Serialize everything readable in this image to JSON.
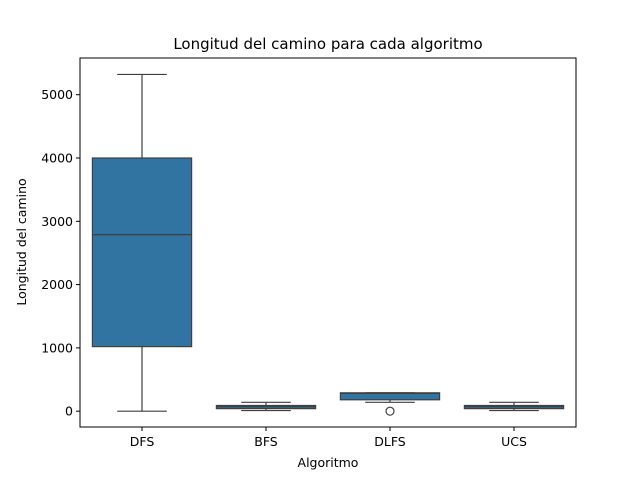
{
  "chart_data": {
    "type": "box",
    "title": "Longitud del camino para cada algoritmo",
    "xlabel": "Algoritmo",
    "ylabel": "Longitud del camino",
    "categories": [
      "DFS",
      "BFS",
      "DLFS",
      "UCS"
    ],
    "yticks": [
      0,
      1000,
      2000,
      3000,
      4000,
      5000
    ],
    "ylim": [
      -250,
      5580
    ],
    "grid": false,
    "color": "#3274a1",
    "line_color": "#3f3f3f",
    "boxes": [
      {
        "category": "DFS",
        "whisker_low": 0,
        "q1": 1020,
        "median": 2790,
        "q3": 4000,
        "whisker_high": 5320,
        "outliers": []
      },
      {
        "category": "BFS",
        "whisker_low": 10,
        "q1": 40,
        "median": 70,
        "q3": 90,
        "whisker_high": 140,
        "outliers": []
      },
      {
        "category": "DLFS",
        "whisker_low": 140,
        "q1": 180,
        "median": 280,
        "q3": 290,
        "whisker_high": 290,
        "outliers": [
          0
        ]
      },
      {
        "category": "UCS",
        "whisker_low": 10,
        "q1": 40,
        "median": 70,
        "q3": 90,
        "whisker_high": 140,
        "outliers": []
      }
    ]
  }
}
